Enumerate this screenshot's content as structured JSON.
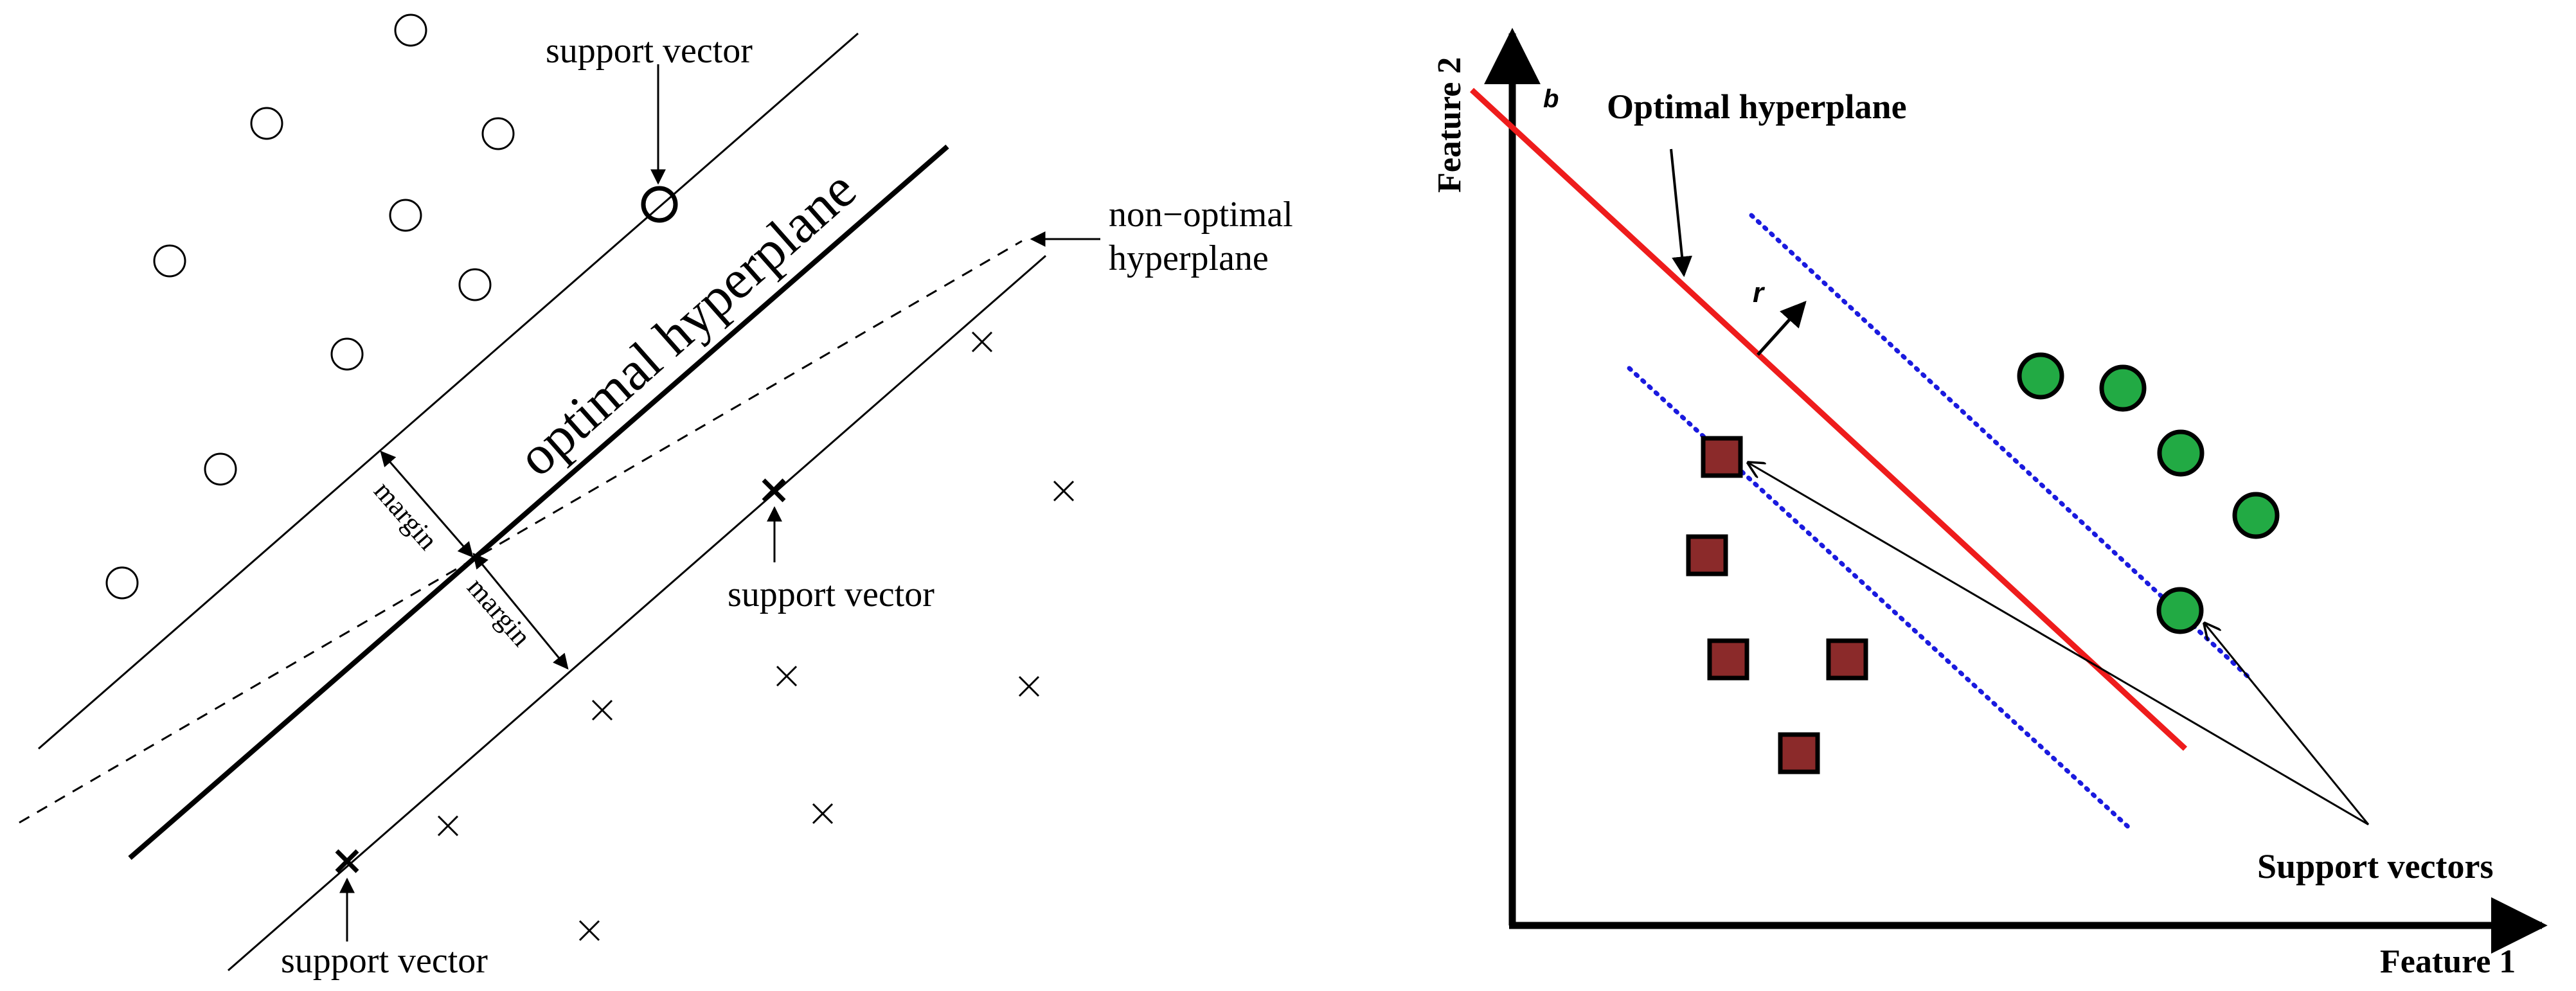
{
  "left_diagram": {
    "title_line": "optimal hyperplane",
    "margin_label": "margin",
    "support_vector_label": "support vector",
    "non_optimal_label_line1": "non−optimal",
    "non_optimal_label_line2": "hyperplane",
    "class_a_marker": "circle",
    "class_b_marker": "cross"
  },
  "right_diagram": {
    "x_axis_label": "Feature 1",
    "y_axis_label": "Feature 2",
    "intercept_label": "b",
    "distance_label": "r",
    "hyperplane_label": "Optimal hyperplane",
    "support_vectors_label": "Support vectors",
    "colors": {
      "hyperplane": "#ee1c1c",
      "margin_lines": "#1a1adf",
      "class_circle": "#22aa44",
      "class_square": "#8b2a2a"
    }
  }
}
